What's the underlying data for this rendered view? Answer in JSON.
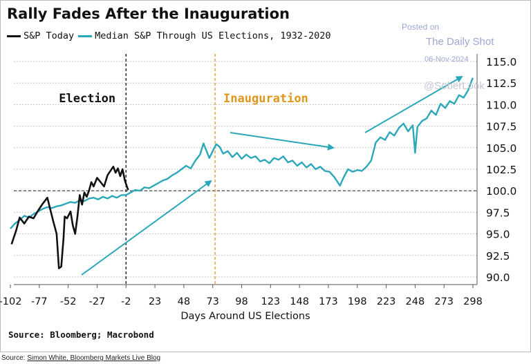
{
  "chart_data": {
    "type": "line",
    "title": "Rally Fades After the Inauguration",
    "xlabel": "Days Around US Elections",
    "ylabel": "",
    "xlim": [
      -102,
      298
    ],
    "ylim": [
      89.5,
      116
    ],
    "grid": "horizontal dotted",
    "legend_position": "top-left",
    "x_ticks": [
      "-102",
      "-77",
      "-52",
      "-27",
      "-2",
      "23",
      "48",
      "73",
      "98",
      "123",
      "148",
      "173",
      "198",
      "223",
      "248",
      "273",
      "298"
    ],
    "y_ticks": [
      "90.0",
      "92.5",
      "95.0",
      "97.5",
      "100.0",
      "102.5",
      "105.0",
      "107.5",
      "110.0",
      "112.5",
      "115.0"
    ],
    "series": [
      {
        "name": "S&P Today",
        "color": "#111111",
        "x": [
          -101,
          -97,
          -94,
          -90,
          -86,
          -82,
          -78,
          -74,
          -70,
          -68,
          -65,
          -62,
          -60,
          -58,
          -56,
          -55,
          -53,
          -50,
          -48,
          -46,
          -44,
          -42,
          -40,
          -38,
          -36,
          -34,
          -32,
          -30,
          -27,
          -24,
          -21,
          -18,
          -15,
          -13,
          -11,
          -9,
          -7,
          -5,
          -3,
          -1,
          0
        ],
        "values": [
          93.8,
          95.4,
          96.9,
          96.2,
          97.0,
          96.8,
          97.7,
          98.5,
          99.2,
          98.1,
          96.5,
          95.0,
          91.0,
          91.2,
          94.5,
          97.0,
          96.8,
          97.6,
          96.0,
          95.0,
          97.0,
          99.5,
          98.4,
          99.8,
          99.3,
          100.0,
          101.0,
          100.5,
          101.5,
          101.0,
          100.5,
          101.8,
          102.4,
          102.8,
          102.1,
          102.6,
          101.7,
          102.5,
          101.2,
          100.4,
          100.1
        ]
      },
      {
        "name": "Median S&P Through US Elections, 1932-2020",
        "color": "#2aa7b8",
        "x": [
          -102,
          -98,
          -94,
          -90,
          -86,
          -82,
          -78,
          -74,
          -70,
          -66,
          -62,
          -58,
          -54,
          -50,
          -46,
          -42,
          -38,
          -34,
          -30,
          -26,
          -22,
          -18,
          -14,
          -10,
          -6,
          -2,
          2,
          6,
          10,
          14,
          18,
          22,
          26,
          30,
          34,
          38,
          42,
          46,
          50,
          54,
          58,
          62,
          65,
          68,
          70,
          73,
          76,
          79,
          82,
          86,
          90,
          94,
          98,
          102,
          106,
          110,
          114,
          118,
          122,
          126,
          130,
          134,
          138,
          142,
          146,
          150,
          154,
          158,
          162,
          166,
          170,
          174,
          178,
          181,
          183,
          186,
          190,
          194,
          198,
          202,
          206,
          210,
          214,
          218,
          222,
          226,
          230,
          234,
          238,
          242,
          246,
          248,
          250,
          254,
          258,
          262,
          266,
          270,
          274,
          278,
          282,
          286,
          290,
          294,
          297,
          298
        ],
        "values": [
          95.6,
          96.2,
          96.6,
          97.1,
          96.9,
          97.3,
          97.6,
          97.9,
          98.1,
          98.0,
          98.2,
          98.3,
          98.5,
          98.7,
          98.6,
          98.9,
          98.8,
          99.1,
          99.2,
          99.0,
          99.3,
          99.1,
          99.4,
          99.2,
          99.5,
          99.5,
          99.8,
          100.1,
          100.0,
          100.4,
          100.3,
          100.6,
          100.9,
          101.2,
          101.4,
          101.8,
          102.1,
          102.5,
          102.9,
          102.6,
          103.5,
          104.2,
          105.5,
          104.5,
          103.8,
          104.6,
          105.4,
          105.1,
          104.3,
          104.6,
          103.9,
          104.4,
          103.7,
          104.2,
          103.8,
          104.0,
          103.4,
          103.6,
          103.2,
          103.8,
          103.6,
          104.0,
          103.3,
          103.5,
          102.9,
          103.3,
          102.7,
          103.1,
          102.5,
          102.8,
          102.3,
          102.2,
          101.6,
          101.0,
          100.6,
          101.5,
          102.5,
          102.2,
          102.4,
          102.3,
          102.8,
          103.5,
          105.6,
          106.2,
          105.9,
          106.8,
          106.4,
          107.3,
          107.8,
          106.9,
          107.6,
          104.4,
          107.4,
          108.1,
          108.4,
          109.3,
          108.8,
          110.1,
          109.6,
          110.4,
          110.1,
          111.1,
          110.8,
          111.7,
          112.8,
          113.1
        ]
      }
    ],
    "annotations": [
      {
        "label": "Election",
        "x": -2,
        "color": "#111111"
      },
      {
        "label": "Inauguration",
        "x": 75,
        "color": "#e0961c"
      }
    ]
  },
  "watermark": {
    "posted": "Posted on",
    "name": "The Daily Shot",
    "date": "06-Nov-2024",
    "handle": "@SoberLook"
  },
  "source_note": "Source: Bloomberg; Macrobond",
  "credit": {
    "prefix": "Source: ",
    "author": "Simon White, Bloomberg Markets Live Blog"
  }
}
